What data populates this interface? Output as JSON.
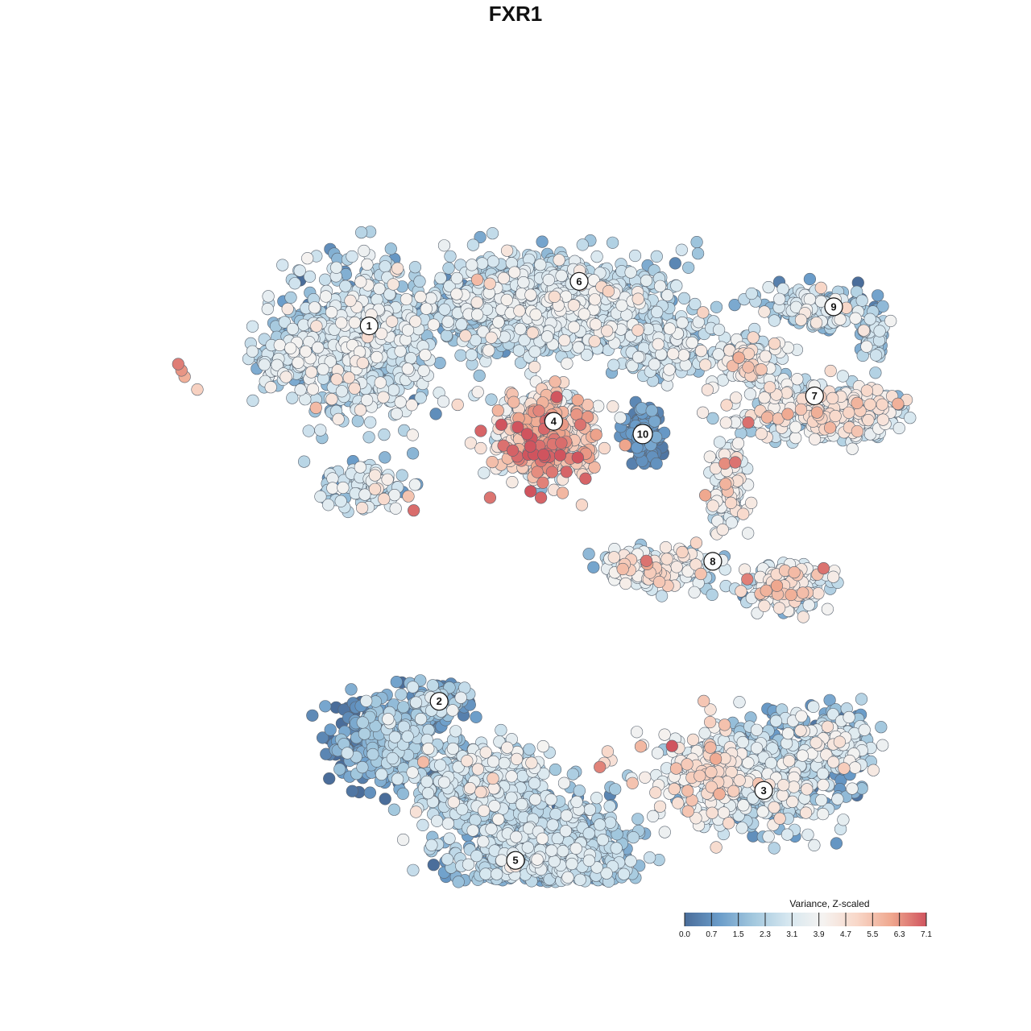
{
  "chart_data": {
    "type": "scatter",
    "title": "FXR1",
    "xlabel": "",
    "ylabel": "",
    "grid": false,
    "axes_visible": false,
    "point_count_estimate": 9000,
    "colorbar": {
      "title": "Variance, Z-scaled",
      "min": 0.0,
      "max": 7.1,
      "ticks": [
        "0.0",
        "0.7",
        "1.5",
        "2.3",
        "3.1",
        "3.9",
        "4.7",
        "5.5",
        "6.3",
        "7.1"
      ],
      "colors": [
        "#4a6d9a",
        "#6a9cc9",
        "#a3c8de",
        "#d6e7f0",
        "#f5f3f1",
        "#f8d7c8",
        "#efa78e",
        "#d0545e"
      ],
      "placement": "bottom-right"
    },
    "clusters": [
      {
        "label": "1",
        "center": [
          -2.3,
          2.6
        ],
        "mean_value": 2.6
      },
      {
        "label": "2",
        "center": [
          -1.2,
          -3.3
        ],
        "mean_value": 1.4
      },
      {
        "label": "3",
        "center": [
          3.9,
          -4.7
        ],
        "mean_value": 2.2
      },
      {
        "label": "4",
        "center": [
          0.6,
          1.1
        ],
        "mean_value": 4.6
      },
      {
        "label": "5",
        "center": [
          0.0,
          -5.8
        ],
        "mean_value": 2.2
      },
      {
        "label": "6",
        "center": [
          1.0,
          3.3
        ],
        "mean_value": 2.6
      },
      {
        "label": "7",
        "center": [
          4.7,
          1.5
        ],
        "mean_value": 3.5
      },
      {
        "label": "8",
        "center": [
          3.1,
          -1.1
        ],
        "mean_value": 3.5
      },
      {
        "label": "9",
        "center": [
          5.0,
          2.9
        ],
        "mean_value": 2.2
      },
      {
        "label": "10",
        "center": [
          2.0,
          0.9
        ],
        "mean_value": 0.5
      }
    ]
  }
}
